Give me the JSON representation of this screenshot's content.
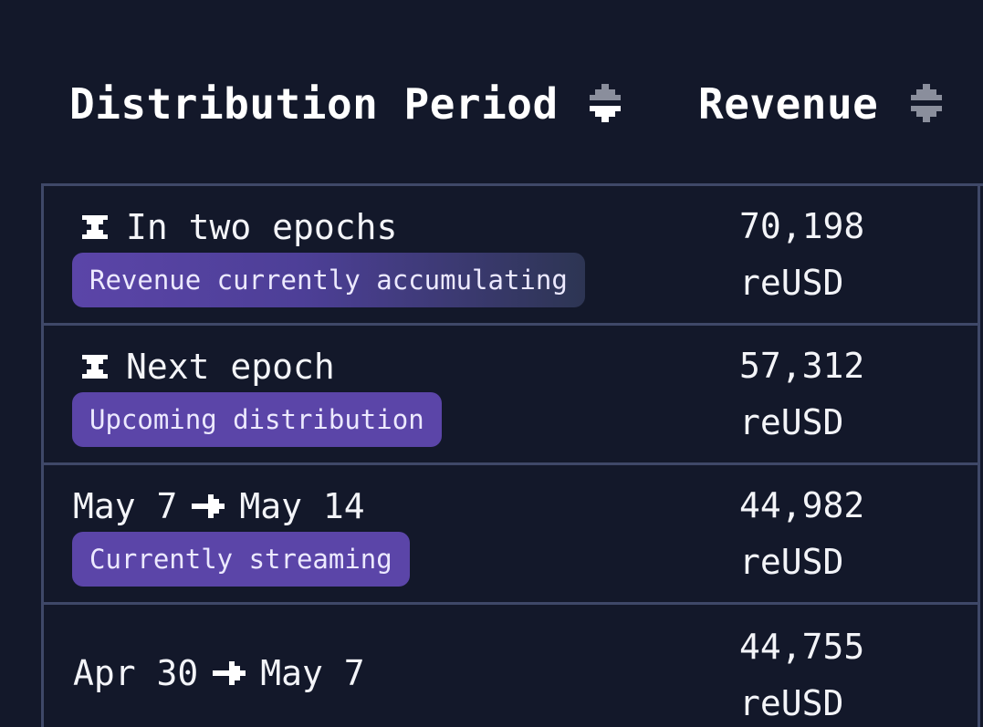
{
  "header": {
    "period_label": "Distribution Period",
    "revenue_label": "Revenue",
    "sort_icon": "sort-arrows-icon"
  },
  "rows": [
    {
      "period": "In two epochs",
      "icon": "hourglass-icon",
      "badge": "Revenue currently accumulating",
      "revenue": "70,198",
      "unit": "reUSD"
    },
    {
      "period": "Next epoch",
      "icon": "hourglass-icon",
      "badge": "Upcoming distribution",
      "revenue": "57,312",
      "unit": "reUSD"
    },
    {
      "period_start": "May 7",
      "period_end": "May 14",
      "icon": "arrow-right-icon",
      "badge": "Currently streaming",
      "revenue": "44,982",
      "unit": "reUSD"
    },
    {
      "period_start": "Apr 30",
      "period_end": "May 7",
      "icon": "arrow-right-icon",
      "revenue": "44,755",
      "unit": "reUSD"
    }
  ],
  "colors": {
    "background": "#13182a",
    "border": "#3f4868",
    "badge": "#5b45a8",
    "text": "#f3f4f8"
  }
}
